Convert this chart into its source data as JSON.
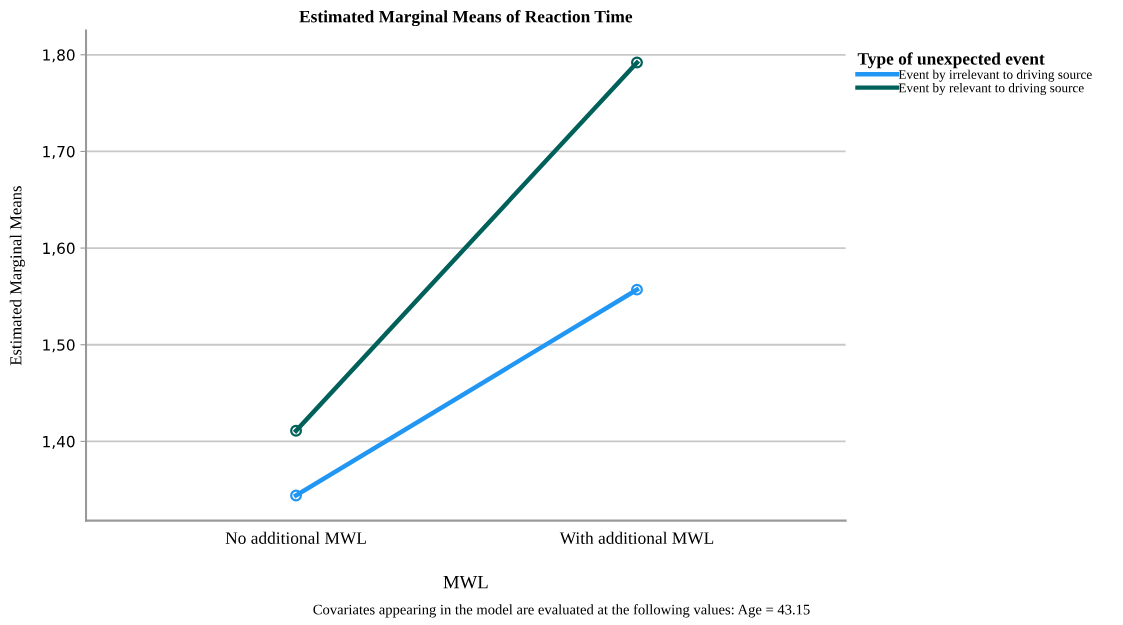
{
  "chart_data": {
    "type": "line",
    "title": "Estimated Marginal Means of Reaction Time",
    "xlabel": "MWL",
    "ylabel": "Estimated Marginal Means",
    "legend_title": "Type of unexpected event",
    "categories": [
      "No additional MWL",
      "With additional MWL"
    ],
    "series": [
      {
        "name": "Event by irrelevant to driving source",
        "color": "#2196f3",
        "values": [
          1.344,
          1.557
        ]
      },
      {
        "name": "Event by relevant to driving source",
        "color": "#00605a",
        "values": [
          1.411,
          1.792
        ]
      }
    ],
    "ylim": [
      1.318,
      1.825
    ],
    "yticks": [
      {
        "value": 1.4,
        "label": "1,40"
      },
      {
        "value": 1.5,
        "label": "1,50"
      },
      {
        "value": 1.6,
        "label": "1,60"
      },
      {
        "value": 1.7,
        "label": "1,70"
      },
      {
        "value": 1.8,
        "label": "1,80"
      }
    ],
    "grid": "y",
    "legend": "top right",
    "marker": "circle",
    "line_style": "solid",
    "annotations": [
      "Covariates appearing in the model are evaluated at the following values: Age = 43.15"
    ]
  }
}
